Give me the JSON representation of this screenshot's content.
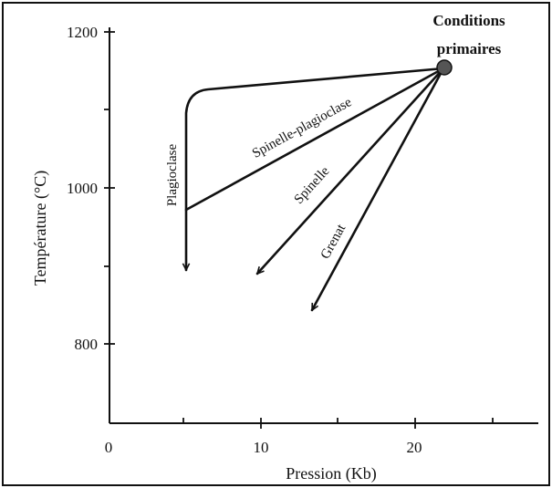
{
  "diagram": {
    "x_axis": {
      "label": "Pression (Kb)",
      "ticks": [
        "0",
        "10",
        "20"
      ]
    },
    "y_axis": {
      "label": "Température (°C)",
      "ticks": [
        "800",
        "1000",
        "1200"
      ]
    },
    "origin_label": {
      "line1": "Conditions",
      "line2": "primaires"
    },
    "paths": [
      {
        "id": "plagioclase",
        "label": "Plagioclase"
      },
      {
        "id": "spinelle-plagioclase",
        "label": "Spinelle-plagioclase"
      },
      {
        "id": "spinelle",
        "label": "Spinelle"
      },
      {
        "id": "grenat",
        "label": "Grenat"
      }
    ]
  }
}
